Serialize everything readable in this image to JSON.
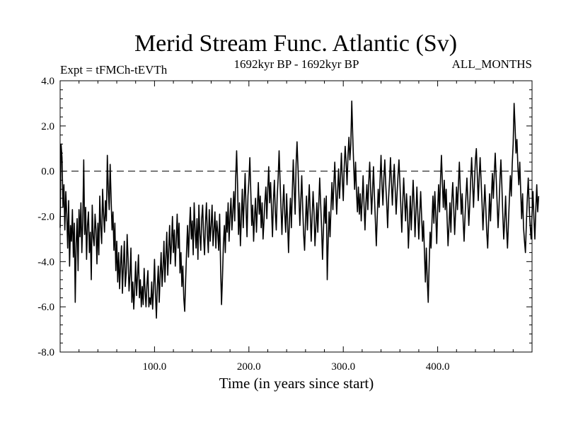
{
  "chart_data": {
    "type": "line",
    "title": "Merid Stream Func. Atlantic (Sv)",
    "subtitle_left": "Expt = tFMCh-tEVTh",
    "subtitle_center": "1692kyr BP - 1692kyr BP",
    "subtitle_right": "ALL_MONTHS",
    "xlabel": "Time (in years since start)",
    "ylabel": "",
    "xlim": [
      0,
      500
    ],
    "ylim": [
      -8.0,
      4.0
    ],
    "x_ticks": [
      100,
      200,
      300,
      400
    ],
    "x_tick_labels": [
      "100.0",
      "200.0",
      "300.0",
      "400.0"
    ],
    "y_ticks": [
      4.0,
      2.0,
      0.0,
      -2.0,
      -4.0,
      -6.0,
      -8.0
    ],
    "y_tick_labels": [
      "4.0",
      "2.0",
      "0.0",
      "-2.0",
      "-4.0",
      "-6.0",
      "-8.0"
    ],
    "reference_line": {
      "y": 0.0,
      "style": "dashed"
    },
    "grid": false,
    "series": [
      {
        "name": "Merid Stream Func. Atlantic",
        "x_start": 0,
        "x_step": 1,
        "values": [
          -2.5,
          1.2,
          0.6,
          -1.6,
          -0.6,
          -2.6,
          -0.9,
          -1.9,
          -3.4,
          -1.3,
          -4.2,
          -2.4,
          -3.1,
          -1.7,
          -3.8,
          -2.3,
          -5.8,
          -3.2,
          -2.1,
          -4.4,
          -1.7,
          -2.9,
          -1.4,
          -3.6,
          -2.2,
          0.5,
          -2.8,
          -1.6,
          -3.9,
          -2.4,
          -1.8,
          -3.6,
          -2.7,
          -4.8,
          -1.5,
          -2.9,
          -3.3,
          -1.9,
          -2.6,
          -4.1,
          -2.3,
          -3.7,
          -1.1,
          -2.5,
          -3.2,
          -0.8,
          -1.9,
          -2.7,
          -1.3,
          -2.2,
          0.7,
          -0.8,
          -1.7,
          0.3,
          -1.2,
          -2.6,
          -1.8,
          -3.5,
          -2.3,
          -4.4,
          -3.1,
          -4.9,
          -3.6,
          -5.2,
          -4.1,
          -3.3,
          -5.4,
          -4.2,
          -3.1,
          -5.1,
          -4.5,
          -2.8,
          -3.9,
          -5.3,
          -4.6,
          -3.4,
          -5.8,
          -4.9,
          -6.1,
          -5.2,
          -4.0,
          -5.5,
          -4.6,
          -3.7,
          -5.6,
          -4.8,
          -6.0,
          -5.1,
          -5.9,
          -4.3,
          -5.3,
          -6.0,
          -5.0,
          -4.4,
          -6.0,
          -5.6,
          -5.9,
          -4.9,
          -6.1,
          -5.2,
          -3.9,
          -5.4,
          -6.5,
          -5.1,
          -4.2,
          -5.8,
          -4.6,
          -3.6,
          -5.1,
          -4.3,
          -3.1,
          -4.9,
          -3.8,
          -2.7,
          -4.6,
          -3.5,
          -2.4,
          -4.1,
          -3.2,
          -2.0,
          -3.6,
          -2.6,
          -4.2,
          -3.1,
          -1.9,
          -3.4,
          -2.3,
          -4.5,
          -3.6,
          -5.1,
          -4.2,
          -5.6,
          -6.2,
          -4.8,
          -3.5,
          -2.4,
          -3.8,
          -2.5,
          -1.6,
          -3.0,
          -2.2,
          -3.7,
          -1.4,
          -2.6,
          -3.4,
          -2.1,
          -3.9,
          -1.5,
          -2.8,
          -3.5,
          -2.1,
          -1.5,
          -2.9,
          -3.7,
          -2.3,
          -1.4,
          -2.8,
          -3.6,
          -1.7,
          -3.1,
          -2.4,
          -1.5,
          -3.3,
          -2.6,
          -1.8,
          -3.4,
          -2.2,
          -2.7,
          -3.5,
          -1.9,
          -4.2,
          -5.9,
          -4.7,
          -3.2,
          -2.4,
          -3.6,
          -1.8,
          -2.7,
          -1.4,
          -3.1,
          -2.0,
          -1.2,
          -2.6,
          -1.8,
          -0.9,
          -2.2,
          -0.3,
          0.9,
          -0.6,
          -2.8,
          -1.4,
          -3.3,
          -2.1,
          -0.8,
          -2.5,
          -1.3,
          -0.1,
          -1.7,
          -2.9,
          -1.1,
          -0.4,
          0.6,
          -0.9,
          -2.4,
          -1.5,
          -3.1,
          -2.0,
          -1.2,
          -2.7,
          -1.6,
          -0.5,
          -1.9,
          -1.1,
          -2.5,
          -1.4,
          -3.0,
          -2.2,
          -1.3,
          -0.7,
          -2.1,
          -0.8,
          0.2,
          -1.4,
          -0.5,
          -1.7,
          -2.9,
          -1.3,
          -0.4,
          -1.8,
          -2.6,
          -1.1,
          -0.3,
          0.9,
          -0.4,
          -1.6,
          -2.8,
          -1.5,
          -0.6,
          -1.9,
          -2.7,
          -1.0,
          -2.3,
          -3.6,
          -2.1,
          -1.2,
          -2.5,
          -0.9,
          0.5,
          -0.8,
          -1.9,
          0.3,
          1.3,
          0.2,
          -1.1,
          -2.4,
          -1.3,
          -0.2,
          -1.6,
          -2.8,
          -3.5,
          -2.2,
          -1.1,
          -2.6,
          -1.5,
          -0.6,
          -1.9,
          -3.1,
          -2.0,
          -0.9,
          -1.8,
          -3.3,
          -2.4,
          -1.4,
          -2.7,
          -1.5,
          -0.3,
          -1.4,
          -2.5,
          -3.9,
          -2.6,
          -1.2,
          -2.3,
          -1.1,
          -4.8,
          -3.1,
          -1.8,
          -2.9,
          -1.6,
          -0.5,
          -1.7,
          -0.6,
          0.4,
          -0.8,
          -1.9,
          -0.9,
          0.1,
          -1.2,
          -0.3,
          0.8,
          -0.4,
          -1.3,
          0.2,
          1.1,
          0.4,
          -0.6,
          0.7,
          1.5,
          0.5,
          1.2,
          3.1,
          1.6,
          0.3,
          -0.8,
          0.4,
          -0.9,
          -1.8,
          -0.7,
          -1.9,
          -1.0,
          -2.2,
          -1.3,
          -0.2,
          -1.5,
          -2.6,
          -1.4,
          -0.6,
          -1.7,
          -0.5,
          0.4,
          -0.8,
          -1.9,
          -0.9,
          0.2,
          -1.1,
          -2.2,
          -3.3,
          -2.0,
          -0.8,
          -1.6,
          -0.4,
          0.7,
          -0.6,
          -1.5,
          -0.3,
          0.5,
          -0.6,
          -1.4,
          -2.5,
          -1.2,
          -0.4,
          0.6,
          -0.5,
          -1.5,
          -0.4,
          0.3,
          -0.8,
          -1.9,
          -1.0,
          -0.2,
          0.5,
          -0.5,
          -1.6,
          -2.7,
          -1.4,
          -0.3,
          -1.3,
          -2.2,
          -1.0,
          -1.8,
          -3.4,
          -2.3,
          -1.1,
          -2.6,
          -1.5,
          -0.4,
          -1.4,
          -2.9,
          -1.8,
          -0.7,
          -1.9,
          -3.0,
          -1.9,
          -0.9,
          -2.0,
          -3.1,
          -2.2,
          -3.6,
          -4.9,
          -3.4,
          -4.8,
          -5.8,
          -4.1,
          -2.7,
          -3.4,
          -2.2,
          -1.1,
          -2.3,
          -0.9,
          -1.9,
          -3.2,
          -1.7,
          -0.6,
          -1.8,
          -0.4,
          0.7,
          -0.5,
          -1.6,
          -0.4,
          -1.7,
          -0.8,
          -2.1,
          -3.3,
          -2.4,
          -1.4,
          -2.7,
          -1.3,
          -0.5,
          -1.6,
          -2.8,
          -1.8,
          -0.7,
          -1.7,
          -0.6,
          0.4,
          -0.8,
          -1.9,
          -1.0,
          -2.2,
          -3.1,
          -2.0,
          -1.1,
          -0.3,
          -1.3,
          -2.4,
          -1.5,
          -0.4,
          0.6,
          -0.5,
          -1.6,
          -0.5,
          0.5,
          1.0,
          -0.2,
          -1.3,
          -0.3,
          0.6,
          -0.4,
          -1.4,
          -2.6,
          -1.6,
          -0.6,
          -1.6,
          -2.7,
          -3.4,
          -2.2,
          -1.0,
          -2.2,
          -1.1,
          -0.1,
          -1.2,
          -0.1,
          0.8,
          -0.3,
          -1.4,
          -2.5,
          -1.6,
          -0.4,
          0.5,
          -0.6,
          -1.9,
          -3.0,
          -2.2,
          -1.1,
          -2.5,
          -3.4,
          -2.3,
          -1.2,
          -0.2,
          -1.1,
          0.3,
          1.2,
          3.0,
          2.0,
          0.8,
          1.4,
          0.2,
          -0.6,
          0.4,
          -0.9,
          -2.1,
          -1.0,
          -2.5,
          -3.1,
          -3.6,
          -2.3,
          -1.2,
          -0.3,
          -1.6,
          -2.4,
          -3.0,
          -1.9,
          -0.9,
          -2.1,
          -3.0,
          -1.7,
          -0.6,
          -1.8,
          -1.1
        ]
      }
    ]
  }
}
